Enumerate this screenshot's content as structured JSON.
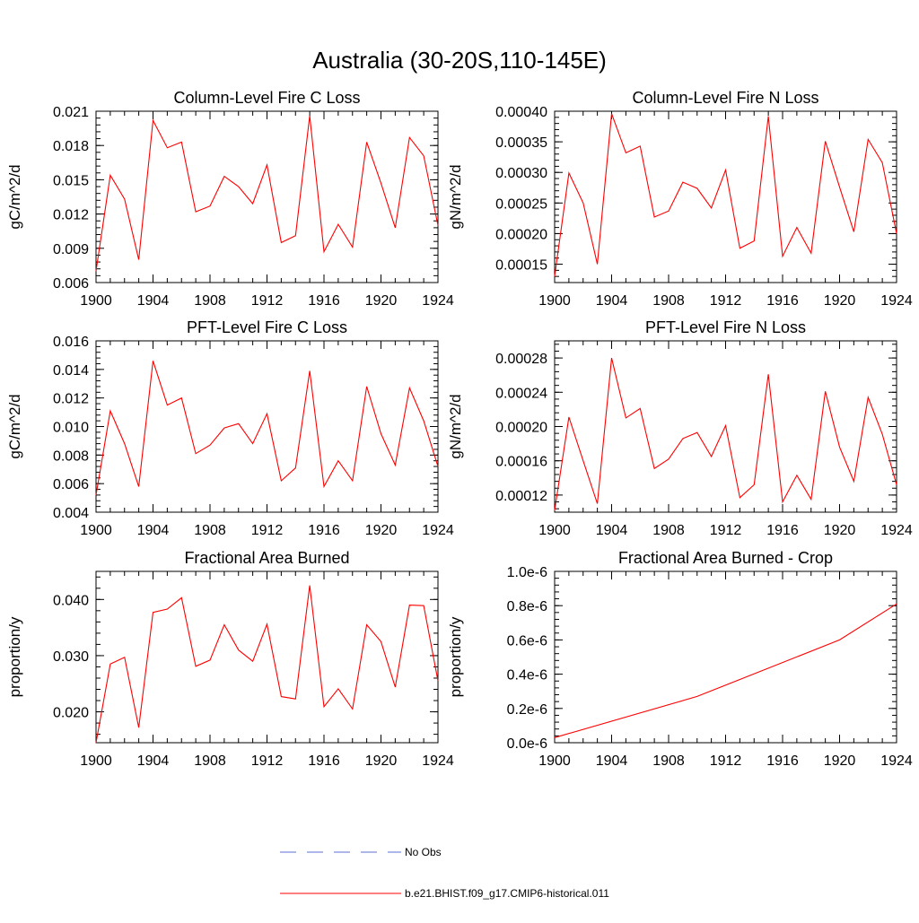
{
  "title": "Australia (30-20S,110-145E)",
  "colors": {
    "series": "#ff0000",
    "obs": "#5b6fd6",
    "axis": "#000000"
  },
  "legend": [
    {
      "label": "No Obs",
      "style": "dashed",
      "color": "#5b6fd6"
    },
    {
      "label": "b.e21.BHIST.f09_g17.CMIP6-historical.011",
      "style": "solid",
      "color": "#ff0000"
    }
  ],
  "chart_data": [
    {
      "type": "line",
      "title": "Column-Level Fire C Loss",
      "ylabel": "gC/m^2/d",
      "xlim": [
        1900,
        1924
      ],
      "ylim": [
        0.006,
        0.021
      ],
      "xticks": [
        "1900",
        "1904",
        "1908",
        "1912",
        "1916",
        "1920",
        "1924"
      ],
      "yticks": [
        "0.006",
        "0.009",
        "0.012",
        "0.015",
        "0.018",
        "0.021"
      ],
      "x": [
        1900,
        1901,
        1902,
        1903,
        1904,
        1905,
        1906,
        1907,
        1908,
        1909,
        1910,
        1911,
        1912,
        1913,
        1914,
        1915,
        1916,
        1917,
        1918,
        1919,
        1920,
        1921,
        1922,
        1923,
        1924
      ],
      "series": [
        {
          "name": "b.e21.BHIST.f09_g17.CMIP6-historical.011",
          "values": [
            0.007,
            0.0154,
            0.0133,
            0.008,
            0.0202,
            0.0178,
            0.0183,
            0.0122,
            0.0127,
            0.0153,
            0.0144,
            0.0129,
            0.0163,
            0.0095,
            0.0101,
            0.0206,
            0.0087,
            0.0111,
            0.0091,
            0.0183,
            0.0147,
            0.0108,
            0.0187,
            0.0171,
            0.011
          ]
        }
      ]
    },
    {
      "type": "line",
      "title": "Column-Level Fire N Loss",
      "ylabel": "gN/m^2/d",
      "xlim": [
        1900,
        1924
      ],
      "ylim": [
        0.00012,
        0.0004
      ],
      "xticks": [
        "1900",
        "1904",
        "1908",
        "1912",
        "1916",
        "1920",
        "1924"
      ],
      "yticks": [
        "0.00015",
        "0.00020",
        "0.00025",
        "0.00030",
        "0.00035",
        "0.00040"
      ],
      "x": [
        1900,
        1901,
        1902,
        1903,
        1904,
        1905,
        1906,
        1907,
        1908,
        1909,
        1910,
        1911,
        1912,
        1913,
        1914,
        1915,
        1916,
        1917,
        1918,
        1919,
        1920,
        1921,
        1922,
        1923,
        1924
      ],
      "series": [
        {
          "name": "b.e21.BHIST.f09_g17.CMIP6-historical.011",
          "values": [
            0.00013,
            0.000299,
            0.00025,
            0.00015,
            0.000396,
            0.000332,
            0.000343,
            0.000227,
            0.000237,
            0.000284,
            0.000274,
            0.000242,
            0.000304,
            0.000176,
            0.000188,
            0.000392,
            0.000163,
            0.00021,
            0.000168,
            0.000351,
            0.000276,
            0.000203,
            0.000354,
            0.000316,
            0.0002
          ]
        }
      ]
    },
    {
      "type": "line",
      "title": "PFT-Level Fire C Loss",
      "ylabel": "gC/m^2/d",
      "xlim": [
        1900,
        1924
      ],
      "ylim": [
        0.004,
        0.016
      ],
      "xticks": [
        "1900",
        "1904",
        "1908",
        "1912",
        "1916",
        "1920",
        "1924"
      ],
      "yticks": [
        "0.004",
        "0.006",
        "0.008",
        "0.010",
        "0.012",
        "0.014",
        "0.016"
      ],
      "x": [
        1900,
        1901,
        1902,
        1903,
        1904,
        1905,
        1906,
        1907,
        1908,
        1909,
        1910,
        1911,
        1912,
        1913,
        1914,
        1915,
        1916,
        1917,
        1918,
        1919,
        1920,
        1921,
        1922,
        1923,
        1924
      ],
      "series": [
        {
          "name": "b.e21.BHIST.f09_g17.CMIP6-historical.011",
          "values": [
            0.0052,
            0.0111,
            0.0088,
            0.0058,
            0.0146,
            0.0115,
            0.012,
            0.0081,
            0.0087,
            0.0099,
            0.0102,
            0.0088,
            0.0109,
            0.0062,
            0.0071,
            0.0139,
            0.0058,
            0.0076,
            0.0062,
            0.0128,
            0.0095,
            0.0073,
            0.0127,
            0.0104,
            0.0072
          ]
        }
      ]
    },
    {
      "type": "line",
      "title": "PFT-Level Fire N Loss",
      "ylabel": "gN/m^2/d",
      "xlim": [
        1900,
        1924
      ],
      "ylim": [
        0.0001,
        0.0003
      ],
      "xticks": [
        "1900",
        "1904",
        "1908",
        "1912",
        "1916",
        "1920",
        "1924"
      ],
      "yticks": [
        "0.00012",
        "0.00016",
        "0.00020",
        "0.00024",
        "0.00028"
      ],
      "x": [
        1900,
        1901,
        1902,
        1903,
        1904,
        1905,
        1906,
        1907,
        1908,
        1909,
        1910,
        1911,
        1912,
        1913,
        1914,
        1915,
        1916,
        1917,
        1918,
        1919,
        1920,
        1921,
        1922,
        1923,
        1924
      ],
      "series": [
        {
          "name": "b.e21.BHIST.f09_g17.CMIP6-historical.011",
          "values": [
            0.000102,
            0.000211,
            0.00016,
            0.00011,
            0.00028,
            0.00021,
            0.000221,
            0.000151,
            0.000162,
            0.000186,
            0.000193,
            0.000165,
            0.000201,
            0.000117,
            0.000132,
            0.000261,
            0.000112,
            0.000143,
            0.000115,
            0.000241,
            0.000176,
            0.000136,
            0.000234,
            0.000191,
            0.000132
          ]
        }
      ]
    },
    {
      "type": "line",
      "title": "Fractional Area Burned",
      "ylabel": "proportion/y",
      "xlim": [
        1900,
        1924
      ],
      "ylim": [
        0.0145,
        0.045
      ],
      "xticks": [
        "1900",
        "1904",
        "1908",
        "1912",
        "1916",
        "1920",
        "1924"
      ],
      "yticks": [
        "0.020",
        "0.030",
        "0.040"
      ],
      "x": [
        1900,
        1901,
        1902,
        1903,
        1904,
        1905,
        1906,
        1907,
        1908,
        1909,
        1910,
        1911,
        1912,
        1913,
        1914,
        1915,
        1916,
        1917,
        1918,
        1919,
        1920,
        1921,
        1922,
        1923,
        1924
      ],
      "series": [
        {
          "name": "b.e21.BHIST.f09_g17.CMIP6-historical.011",
          "values": [
            0.0145,
            0.0285,
            0.0297,
            0.0172,
            0.0377,
            0.0383,
            0.0403,
            0.0281,
            0.0292,
            0.0355,
            0.031,
            0.029,
            0.0356,
            0.0227,
            0.0223,
            0.0425,
            0.0209,
            0.0241,
            0.0205,
            0.0355,
            0.0325,
            0.0244,
            0.039,
            0.0389,
            0.0255
          ]
        }
      ]
    },
    {
      "type": "line",
      "title": "Fractional Area Burned - Crop",
      "ylabel": "proportion/y",
      "xlim": [
        1900,
        1924
      ],
      "ylim": [
        0,
        1e-06
      ],
      "xticks": [
        "1900",
        "1904",
        "1908",
        "1912",
        "1916",
        "1920",
        "1924"
      ],
      "yticks": [
        "0.0e-6",
        "0.2e-6",
        "0.4e-6",
        "0.6e-6",
        "0.8e-6",
        "1.0e-6"
      ],
      "x": [
        1900,
        1910,
        1920,
        1924
      ],
      "series": [
        {
          "name": "b.e21.BHIST.f09_g17.CMIP6-historical.011",
          "values": [
            3e-08,
            2.7e-07,
            6e-07,
            8.1e-07
          ]
        }
      ]
    }
  ]
}
